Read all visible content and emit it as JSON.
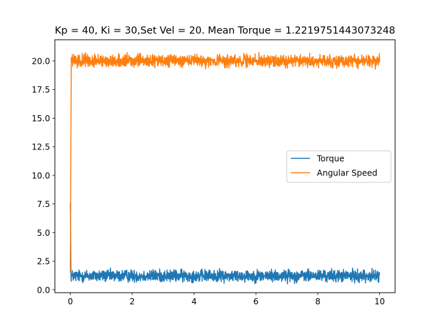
{
  "chart_data": {
    "type": "line",
    "title": "Kp = 40, Ki = 30,Set Vel = 20. Mean Torque = 1.2219751443073248",
    "xlabel": "",
    "ylabel": "",
    "xlim": [
      -0.5,
      10.5
    ],
    "ylim": [
      -0.25,
      21.85
    ],
    "x_ticks": [
      0,
      2,
      4,
      6,
      8,
      10
    ],
    "x_tick_labels": [
      "0",
      "2",
      "4",
      "6",
      "8",
      "10"
    ],
    "y_ticks": [
      0.0,
      2.5,
      5.0,
      7.5,
      10.0,
      12.5,
      15.0,
      17.5,
      20.0
    ],
    "y_tick_labels": [
      "0.0",
      "2.5",
      "5.0",
      "7.5",
      "10.0",
      "12.5",
      "15.0",
      "17.5",
      "20.0"
    ],
    "grid": false,
    "legend_position": "center-right",
    "series": [
      {
        "name": "Torque",
        "color": "#1f77b4",
        "x_range": [
          0,
          10
        ],
        "initial_points": [
          [
            0,
            7.6
          ],
          [
            0.02,
            1.4
          ]
        ],
        "steady_mean": 1.22,
        "noise_amplitude": 0.35
      },
      {
        "name": "Angular Speed",
        "color": "#ff7f0e",
        "x_range": [
          0,
          10
        ],
        "initial_points": [
          [
            0,
            1.5
          ],
          [
            0.03,
            20.3
          ]
        ],
        "steady_mean": 20.0,
        "noise_amplitude": 0.35
      }
    ]
  }
}
